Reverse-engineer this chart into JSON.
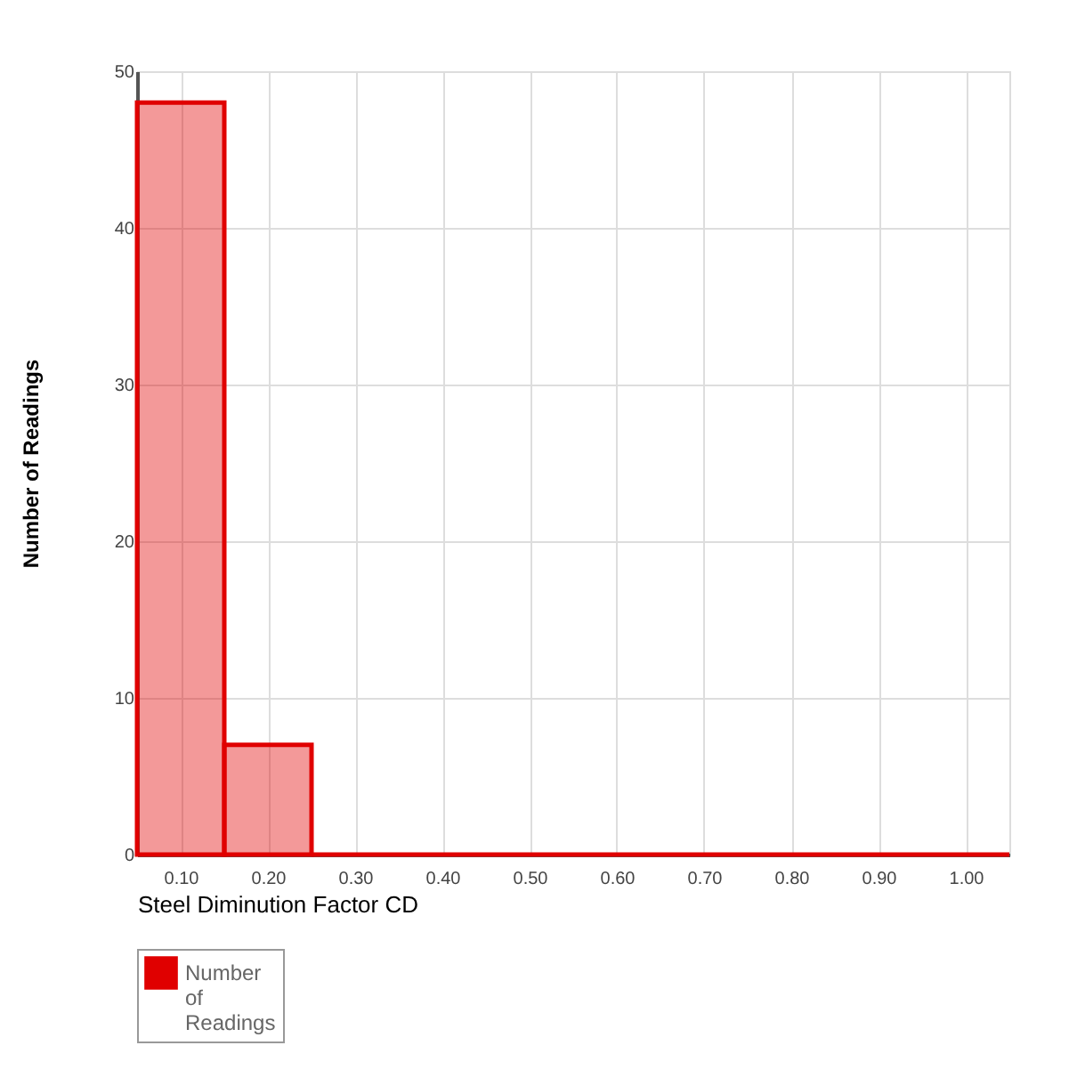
{
  "chart_data": {
    "type": "histogram",
    "xlabel": "Steel Diminution Factor CD",
    "ylabel": "Number of Readings",
    "bins": [
      0.05,
      0.15,
      0.25,
      0.35,
      0.45,
      0.55,
      0.65,
      0.75,
      0.85,
      0.95,
      1.05
    ],
    "series": [
      {
        "name": "Number of Readings",
        "color": "#e00000",
        "values": [
          48,
          7,
          0,
          0,
          0,
          0,
          0,
          0,
          0,
          0
        ]
      }
    ],
    "xlim": [
      0.05,
      1.05
    ],
    "xticks": [
      {
        "value": 0.1,
        "label": "0.10"
      },
      {
        "value": 0.2,
        "label": "0.20"
      },
      {
        "value": 0.3,
        "label": "0.30"
      },
      {
        "value": 0.4,
        "label": "0.40"
      },
      {
        "value": 0.5,
        "label": "0.50"
      },
      {
        "value": 0.6,
        "label": "0.60"
      },
      {
        "value": 0.7,
        "label": "0.70"
      },
      {
        "value": 0.8,
        "label": "0.80"
      },
      {
        "value": 0.9,
        "label": "0.90"
      },
      {
        "value": 1.0,
        "label": "1.00"
      }
    ],
    "ylim": [
      0,
      50
    ],
    "yticks": [
      0,
      10,
      20,
      30,
      40,
      50
    ],
    "grid": true,
    "legend": "bottom left"
  }
}
